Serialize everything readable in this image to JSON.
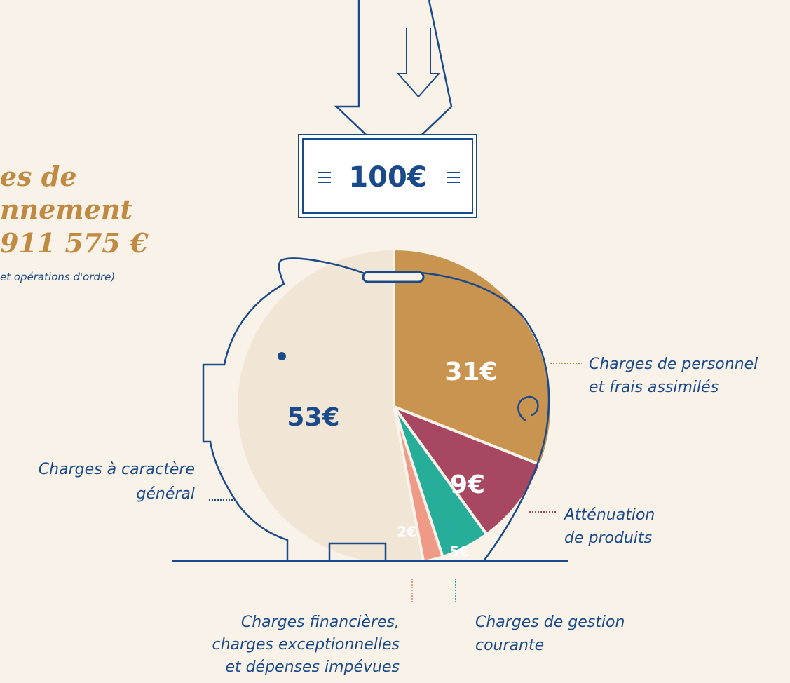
{
  "chart_data": {
    "type": "pie",
    "title_lines": [
      "es de",
      "nnement",
      "911 575 €"
    ],
    "subtitle": "et opérations d'ordre)",
    "note": "100€",
    "categories": [
      [
        "Charges de personnel",
        "et frais assimilés"
      ],
      [
        "Atténuation",
        "de produits"
      ],
      [
        "Charges de gestion",
        "courante"
      ],
      [
        "Charges financières,",
        "charges exceptionnelles",
        "et dépenses impévues"
      ],
      [
        "Charges à caractère",
        "général"
      ]
    ],
    "values": [
      31,
      9,
      5,
      2,
      53
    ],
    "value_labels": [
      "31€",
      "9€",
      "5€",
      "2€",
      "53€"
    ],
    "colors": [
      "#c9944f",
      "#a84762",
      "#27ae9b",
      "#ee9a87",
      "#f1e6d6"
    ]
  }
}
